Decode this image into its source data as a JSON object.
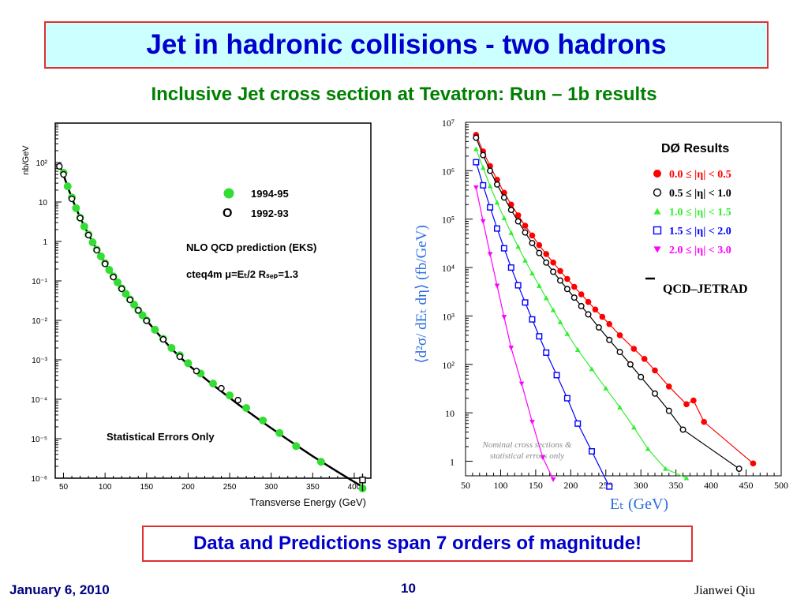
{
  "slide": {
    "title": "Jet in hadronic collisions - two hadrons",
    "subtitle": "Inclusive Jet cross section at Tevatron: Run – 1b results",
    "summary": "Data and Predictions span 7 orders of magnitude!",
    "date": "January 6, 2010",
    "page": "10",
    "author": "Jianwei Qiu"
  },
  "colors": {
    "title_text": "#0000cc",
    "title_bg": "#ccffff",
    "box_border": "#e03030",
    "subtitle_text": "#008000",
    "footer_text": "#000080"
  },
  "chart_data": [
    {
      "type": "scatter",
      "ylabel": "nb/GeV",
      "xlabel": "Transverse Energy  (GeV)",
      "xlim": [
        40,
        420
      ],
      "ylim": [
        1e-06,
        1000
      ],
      "yscale": "log",
      "xticks": [
        "50",
        "100",
        "150",
        "200",
        "250",
        "300",
        "350",
        "400"
      ],
      "yticks": [
        "10²",
        "10",
        "1",
        "10⁻¹",
        "10⁻²",
        "10⁻³",
        "10⁻⁴",
        "10⁻⁵",
        "10⁻⁶"
      ],
      "legend": [
        {
          "label": "1994-95",
          "color": "#33dd33",
          "marker": "filled-circle"
        },
        {
          "label": "1992-93",
          "color": "#000000",
          "marker": "open-circle"
        }
      ],
      "annotations": {
        "theory": "NLO QCD prediction (EKS)",
        "pdf_line": "cteq4m  μ=Eₜ/2  Rₛₑₚ=1.3",
        "note": "Statistical Errors Only"
      },
      "series": [
        {
          "name": "1994-95",
          "x": [
            50,
            55,
            60,
            65,
            70,
            75,
            80,
            85,
            90,
            95,
            100,
            105,
            110,
            115,
            120,
            125,
            130,
            135,
            140,
            145,
            150,
            160,
            170,
            180,
            190,
            200,
            215,
            230,
            250,
            270,
            290,
            310,
            330,
            360,
            410
          ],
          "y": [
            55,
            25,
            13,
            7,
            4,
            2.4,
            1.5,
            0.95,
            0.62,
            0.42,
            0.28,
            0.19,
            0.13,
            0.092,
            0.065,
            0.047,
            0.034,
            0.025,
            0.018,
            0.0135,
            0.01,
            0.0058,
            0.0034,
            0.002,
            0.0013,
            0.00082,
            0.00045,
            0.00025,
            0.000125,
            6e-05,
            2.9e-05,
            1.4e-05,
            6.5e-06,
            2.6e-06,
            5.5e-07
          ]
        },
        {
          "name": "1992-93",
          "x": [
            45,
            50,
            60,
            70,
            80,
            90,
            100,
            110,
            120,
            130,
            140,
            150,
            170,
            190,
            210,
            240,
            260,
            410
          ],
          "y": [
            80,
            50,
            12,
            3.9,
            1.45,
            0.6,
            0.27,
            0.125,
            0.063,
            0.033,
            0.018,
            0.0098,
            0.0033,
            0.0012,
            0.00052,
            0.00019,
            9.5e-05,
            9e-07
          ]
        },
        {
          "name": "NLO QCD prediction (EKS)",
          "x": [
            45,
            50,
            60,
            70,
            80,
            90,
            100,
            120,
            140,
            160,
            180,
            200,
            230,
            260,
            290,
            320,
            350,
            380,
            410
          ],
          "y": [
            90,
            48,
            12.5,
            4.0,
            1.5,
            0.62,
            0.28,
            0.066,
            0.018,
            0.0056,
            0.0019,
            0.00075,
            0.00023,
            7.5e-05,
            2.6e-05,
            9.5e-06,
            3.6e-06,
            1.45e-06,
            6e-07
          ]
        }
      ]
    },
    {
      "type": "scatter",
      "title": "DØ Results",
      "ylabel": "⟨d²σ/ dEₜ dη⟩ (fb/GeV)",
      "xlabel": "Eₜ (GeV)",
      "xlim": [
        50,
        500
      ],
      "ylim": [
        0.5,
        10000000.0
      ],
      "yscale": "log",
      "xticks": [
        "50",
        "100",
        "150",
        "200",
        "250",
        "300",
        "350",
        "400",
        "450",
        "500"
      ],
      "yticks": [
        "10⁷",
        "10⁶",
        "10⁵",
        "10⁴",
        "10³",
        "10²",
        "10",
        "1"
      ],
      "annotations": {
        "theory": "QCD–JETRAD",
        "note": "Nominal cross sections & statistical errors only"
      },
      "series": [
        {
          "name": "0.0 ≤ |η| < 0.5",
          "color": "#ff0000",
          "marker": "filled-circle",
          "x": [
            65,
            75,
            85,
            95,
            105,
            115,
            125,
            135,
            145,
            155,
            165,
            175,
            185,
            195,
            205,
            215,
            225,
            235,
            245,
            255,
            270,
            290,
            305,
            320,
            340,
            365,
            375,
            390,
            460
          ],
          "y": [
            5500000.0,
            2500000.0,
            1250000.0,
            650000.0,
            350000.0,
            200000.0,
            120000.0,
            73000.0,
            46000.0,
            29000.0,
            19000.0,
            12700.0,
            8500.0,
            5800.0,
            4000.0,
            2800.0,
            1950.0,
            1360.0,
            960,
            680,
            400,
            210,
            130,
            75,
            35,
            15,
            18,
            6.5,
            0.9
          ]
        },
        {
          "name": "0.5 ≤ |η| < 1.0",
          "color": "#000000",
          "marker": "open-circle",
          "x": [
            65,
            75,
            85,
            95,
            105,
            115,
            125,
            135,
            145,
            155,
            165,
            175,
            185,
            195,
            205,
            215,
            225,
            240,
            255,
            270,
            285,
            300,
            320,
            340,
            360,
            440
          ],
          "y": [
            4800000.0,
            2100000.0,
            1000000.0,
            520000.0,
            280000.0,
            155000.0,
            90000.0,
            53000.0,
            32000.0,
            20000.0,
            12700.0,
            8200.0,
            5400.0,
            3600.0,
            2400.0,
            1600.0,
            1080.0,
            580,
            320,
            180,
            100,
            55,
            25,
            11,
            4.5,
            0.7
          ]
        },
        {
          "name": "1.0 ≤ |η| < 1.5",
          "color": "#33ee33",
          "marker": "filled-triangle-up",
          "x": [
            65,
            75,
            85,
            95,
            105,
            115,
            125,
            135,
            145,
            155,
            165,
            175,
            185,
            195,
            210,
            230,
            250,
            270,
            290,
            310,
            335,
            365
          ],
          "y": [
            2800000.0,
            1150000.0,
            480000.0,
            220000.0,
            105000.0,
            52000.0,
            27000.0,
            14000.0,
            7600.0,
            4200.0,
            2350.0,
            1320.0,
            750,
            430,
            200,
            80,
            32,
            13,
            5,
            1.8,
            0.7,
            0.45
          ]
        },
        {
          "name": "1.5 ≤ |η| < 2.0",
          "color": "#0000ff",
          "marker": "open-square",
          "x": [
            65,
            75,
            85,
            95,
            105,
            115,
            125,
            135,
            145,
            155,
            165,
            180,
            195,
            210,
            230,
            255
          ],
          "y": [
            1500000.0,
            500000.0,
            175000.0,
            64000.0,
            25000.0,
            10000.0,
            4300.0,
            1900.0,
            850,
            380,
            175,
            60,
            20,
            6,
            1.6,
            0.3
          ]
        },
        {
          "name": "2.0 ≤ |η| < 3.0",
          "color": "#ff00ff",
          "marker": "filled-triangle-down",
          "x": [
            65,
            75,
            85,
            95,
            105,
            115,
            130,
            145,
            160,
            175
          ],
          "y": [
            450000.0,
            90000.0,
            19000.0,
            4200.0,
            950,
            220,
            40,
            6.5,
            1.2,
            0.42
          ]
        }
      ]
    }
  ]
}
